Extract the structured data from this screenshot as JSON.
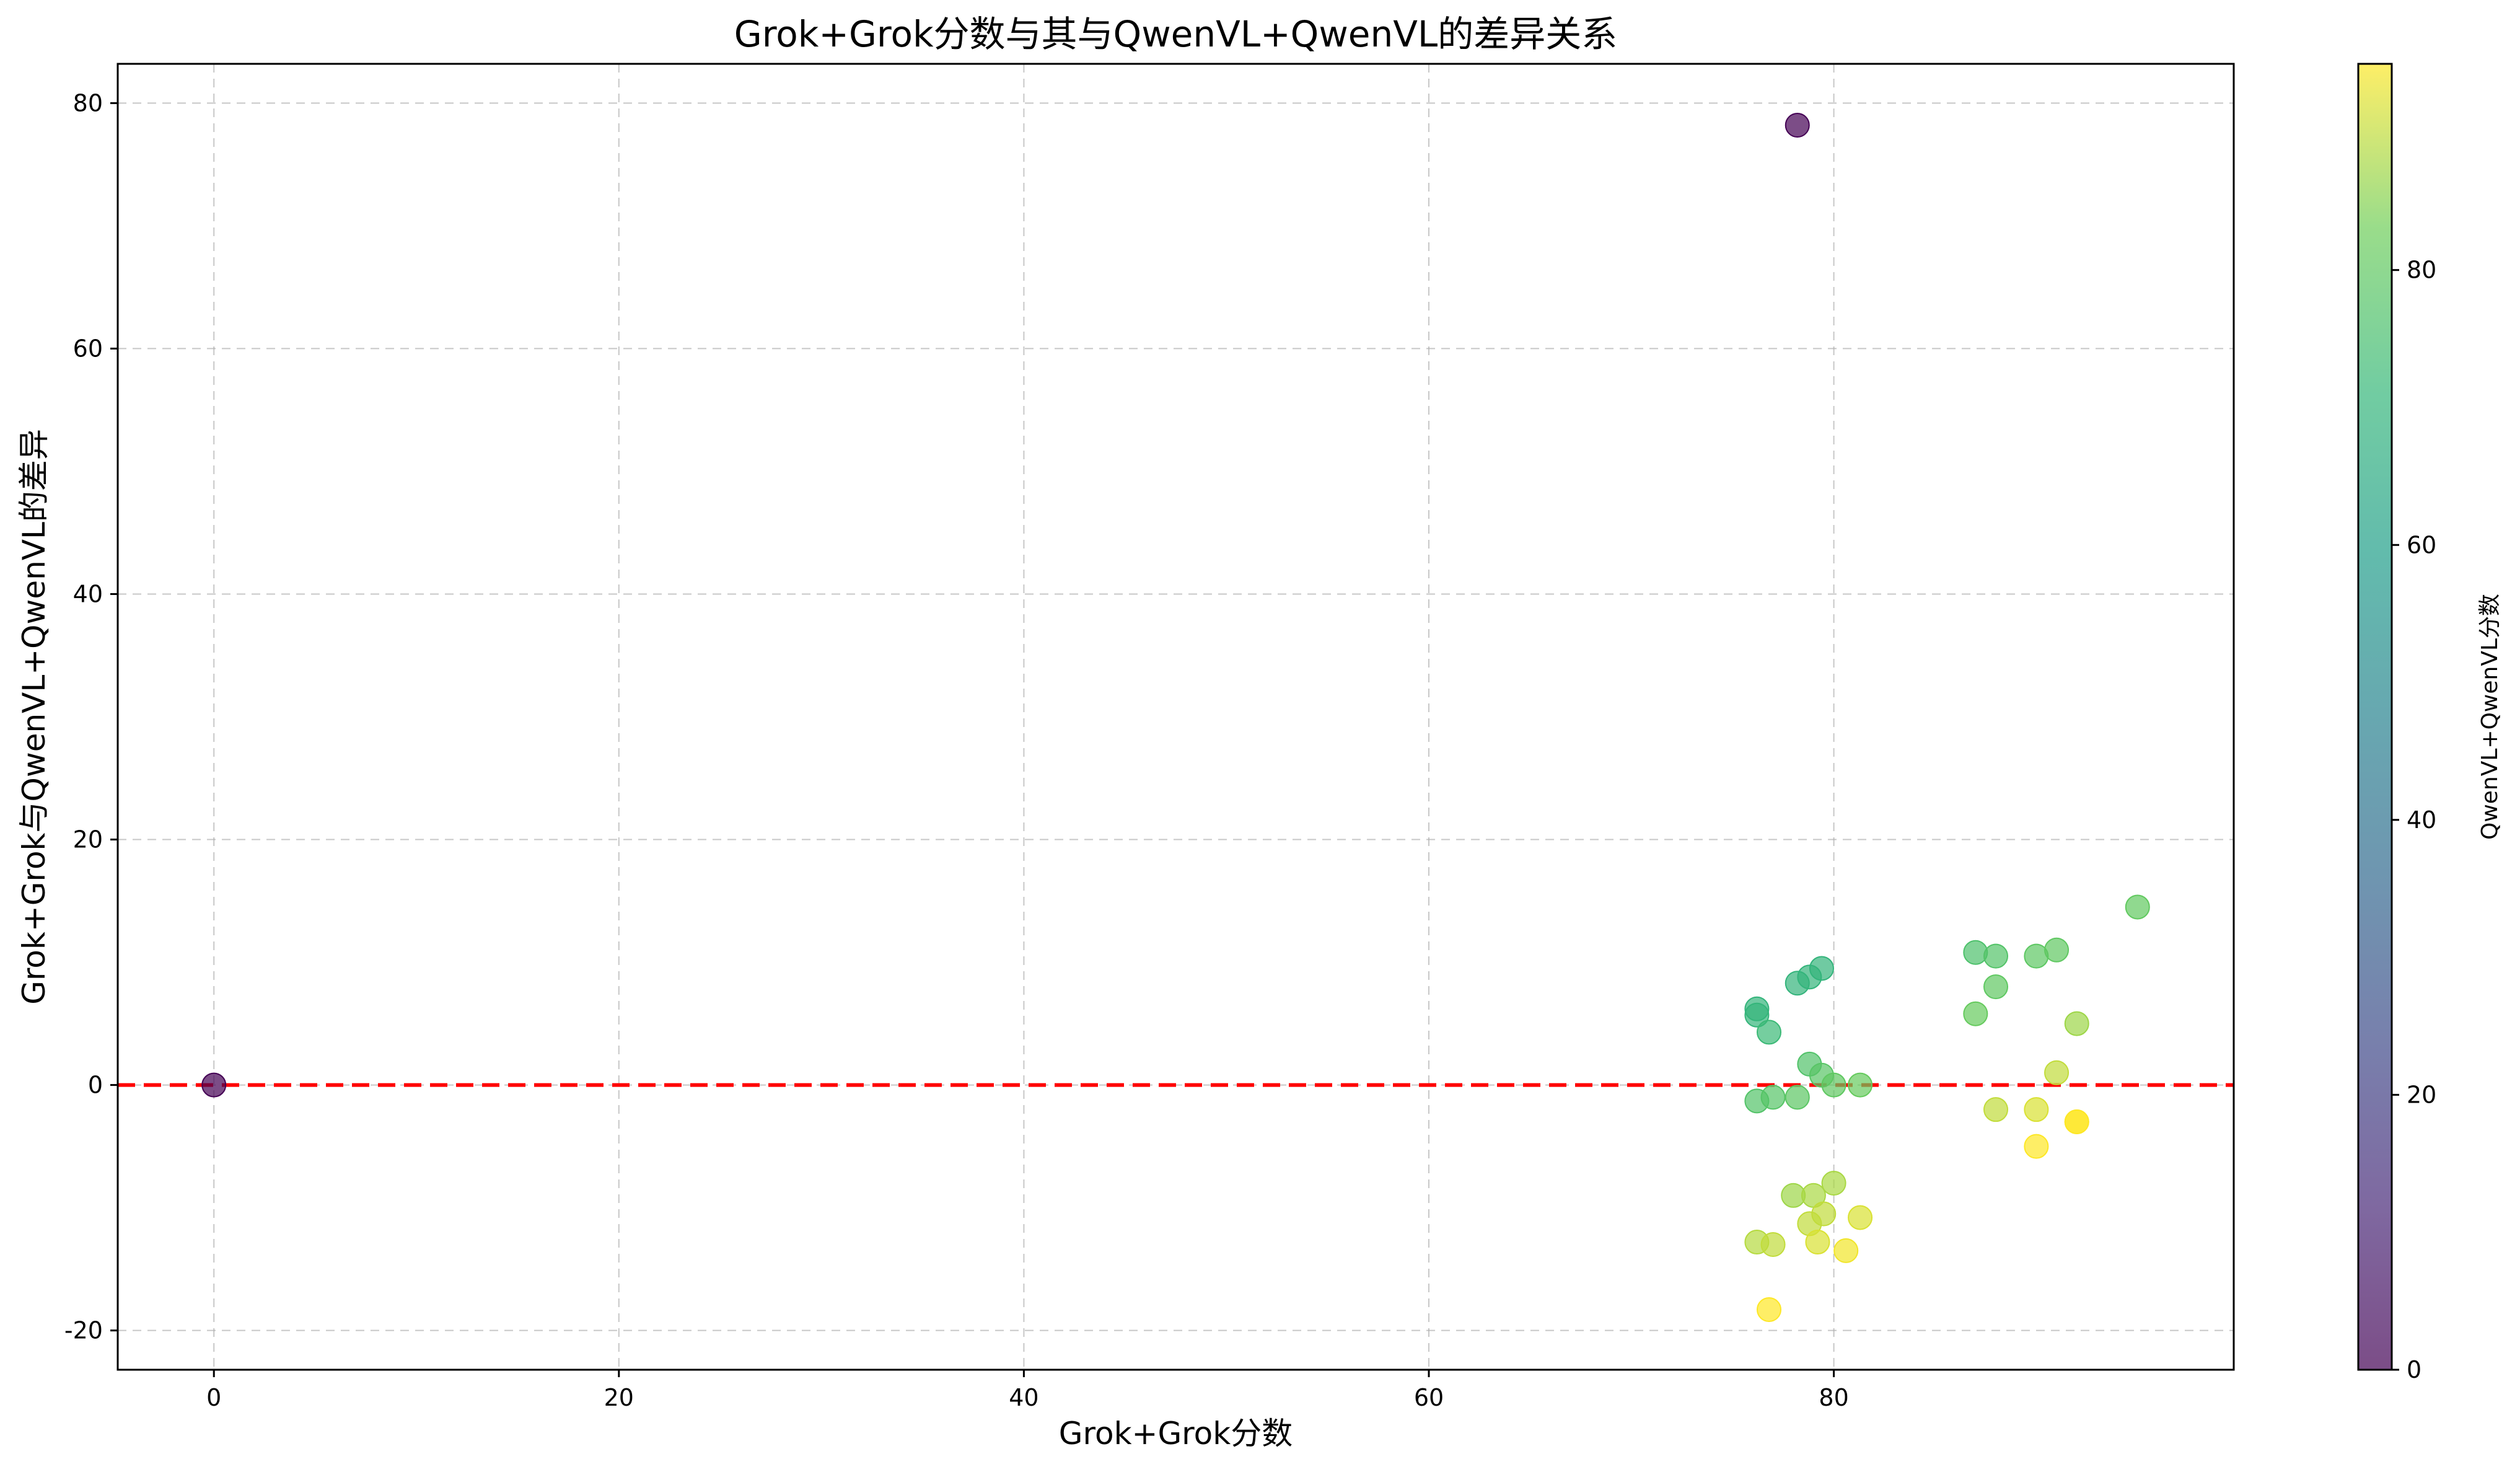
{
  "chart_data": {
    "type": "scatter",
    "title": "Grok+Grok分数与其与QwenVL+QwenVL的差异关系",
    "xlabel": "Grok+Grok分数",
    "ylabel": "Grok+Grok与QwenVL+QwenVL的差异",
    "xlim": [
      -4.75,
      99.75
    ],
    "ylim": [
      -23.2,
      83.2
    ],
    "x_ticks": [
      0,
      20,
      40,
      60,
      80
    ],
    "x_tick_labels": [
      "0",
      "20",
      "40",
      "60",
      "80"
    ],
    "y_ticks": [
      -20,
      0,
      20,
      40,
      60,
      80
    ],
    "y_tick_labels": [
      "-20",
      "0",
      "20",
      "40",
      "60",
      "80"
    ],
    "grid": true,
    "reference_line": {
      "y": 0,
      "color": "#ff0000",
      "style": "dashed"
    },
    "colormap": "viridis",
    "color_variable": "QwenVL+QwenVL分数",
    "colorbar": {
      "label": "QwenVL+QwenVL分数",
      "range": [
        0,
        95
      ],
      "ticks": [
        0,
        20,
        40,
        60,
        80
      ],
      "tick_labels": [
        "0",
        "20",
        "40",
        "60",
        "80"
      ]
    },
    "points": [
      {
        "x": 0,
        "y": 0,
        "c": 0
      },
      {
        "x": 78.2,
        "y": 78.2,
        "c": 0
      },
      {
        "x": 76.2,
        "y": 6.2,
        "c": 70
      },
      {
        "x": 76.2,
        "y": 5.7,
        "c": 70.5
      },
      {
        "x": 76.8,
        "y": 4.3,
        "c": 72.5
      },
      {
        "x": 78.2,
        "y": 8.3,
        "c": 70
      },
      {
        "x": 78.8,
        "y": 8.8,
        "c": 70
      },
      {
        "x": 79.4,
        "y": 9.5,
        "c": 70
      },
      {
        "x": 78.8,
        "y": 1.7,
        "c": 77
      },
      {
        "x": 79.4,
        "y": 0.8,
        "c": 78.6
      },
      {
        "x": 80,
        "y": 0,
        "c": 80
      },
      {
        "x": 81.3,
        "y": 0,
        "c": 81.3
      },
      {
        "x": 76.2,
        "y": -1.3,
        "c": 77.5
      },
      {
        "x": 77,
        "y": -1,
        "c": 78
      },
      {
        "x": 78.2,
        "y": -1,
        "c": 79.2
      },
      {
        "x": 80,
        "y": -8,
        "c": 88
      },
      {
        "x": 78,
        "y": -9,
        "c": 87
      },
      {
        "x": 79,
        "y": -9,
        "c": 88
      },
      {
        "x": 79.5,
        "y": -10.5,
        "c": 90
      },
      {
        "x": 78.8,
        "y": -11.3,
        "c": 90
      },
      {
        "x": 81.3,
        "y": -10.8,
        "c": 92
      },
      {
        "x": 76.2,
        "y": -12.8,
        "c": 89
      },
      {
        "x": 77,
        "y": -13,
        "c": 90
      },
      {
        "x": 79.2,
        "y": -12.8,
        "c": 92
      },
      {
        "x": 80.6,
        "y": -13.5,
        "c": 94
      },
      {
        "x": 76.8,
        "y": -18.3,
        "c": 95
      },
      {
        "x": 87,
        "y": 10.8,
        "c": 76.2
      },
      {
        "x": 88,
        "y": 10.5,
        "c": 77.5
      },
      {
        "x": 90,
        "y": 10.5,
        "c": 79.5
      },
      {
        "x": 91,
        "y": 11,
        "c": 80
      },
      {
        "x": 95,
        "y": 14.5,
        "c": 80.5
      },
      {
        "x": 88,
        "y": 8,
        "c": 80
      },
      {
        "x": 87,
        "y": 5.8,
        "c": 81.2
      },
      {
        "x": 92,
        "y": 5,
        "c": 87
      },
      {
        "x": 91,
        "y": 1,
        "c": 90
      },
      {
        "x": 88,
        "y": -2,
        "c": 90
      },
      {
        "x": 90,
        "y": -2,
        "c": 92
      },
      {
        "x": 92,
        "y": -3,
        "c": 95
      },
      {
        "x": 92,
        "y": -3,
        "c": 95
      },
      {
        "x": 90,
        "y": -5,
        "c": 95
      }
    ]
  }
}
